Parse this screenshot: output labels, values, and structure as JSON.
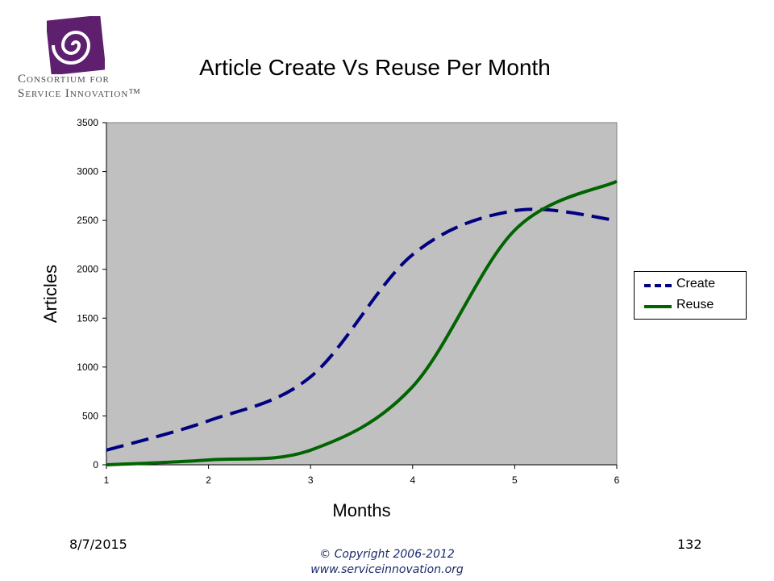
{
  "logo": {
    "line1": "Consortium for",
    "line2": "Service Innovation™",
    "colors": {
      "mark": "#5e1f6e"
    }
  },
  "title": "Article Create Vs Reuse Per Month",
  "footer": {
    "date": "8/7/2015",
    "page": "132",
    "copyright_line1": "© Copyright 2006-2012",
    "copyright_line2": "www.serviceinnovation.org"
  },
  "chart_data": {
    "type": "line",
    "title": "Article Create Vs Reuse Per Month",
    "xlabel": "Months",
    "ylabel": "Articles",
    "x": [
      1,
      2,
      3,
      4,
      5,
      6
    ],
    "xticks": [
      "1",
      "2",
      "3",
      "4",
      "5",
      "6"
    ],
    "yticks": [
      "0",
      "500",
      "1000",
      "1500",
      "2000",
      "2500",
      "3000",
      "3500"
    ],
    "xlim": [
      1,
      6
    ],
    "ylim": [
      0,
      3500
    ],
    "grid": false,
    "plot_background": "#c0c0c0",
    "legend_position": "right",
    "series": [
      {
        "name": "Create",
        "style": "dashed",
        "color": "#000080",
        "values": [
          150,
          450,
          900,
          2150,
          2600,
          2500
        ]
      },
      {
        "name": "Reuse",
        "style": "solid",
        "color": "#006400",
        "values": [
          0,
          50,
          150,
          800,
          2400,
          2900
        ]
      }
    ]
  }
}
